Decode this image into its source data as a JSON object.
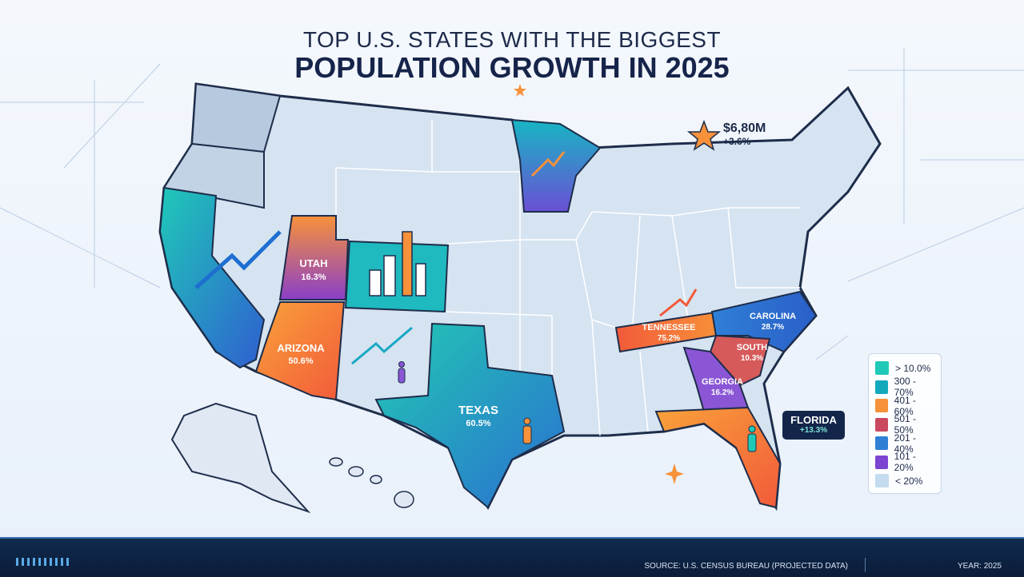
{
  "title": {
    "line1": "TOP U.S. STATES WITH THE BIGGEST",
    "line2": "POPULATION GROWTH IN 2025"
  },
  "states": [
    {
      "name": "UTAH",
      "value": "16.3%"
    },
    {
      "name": "ARIZONA",
      "value": "50.6%"
    },
    {
      "name": "TEXAS",
      "value": "60.5%"
    },
    {
      "name": "TENNESSEE",
      "value": "75.2%"
    },
    {
      "name": "CAROLINA",
      "value": "28.7%"
    },
    {
      "name": "SOUTH",
      "value": "10.3%"
    },
    {
      "name": "GEORGIA",
      "value": "16.2%"
    }
  ],
  "florida_callout": {
    "name": "FLORIDA",
    "value": "+13.3%"
  },
  "stat_callout": {
    "amount": "$6,80M",
    "change": "+3.6%"
  },
  "legend": [
    {
      "label": "> 10.0%",
      "color": "#1fc9b8"
    },
    {
      "label": "300 - 70%",
      "color": "#14a9bd"
    },
    {
      "label": "401 - 60%",
      "color": "#f7913a"
    },
    {
      "label": "501 - 50%",
      "color": "#c9485e"
    },
    {
      "label": "201 - 40%",
      "color": "#2f7fd6"
    },
    {
      "label": "101 - 20%",
      "color": "#7b45d2"
    },
    {
      "label": "< 20%",
      "color": "#c5dcef"
    }
  ],
  "footer": {
    "source": "SOURCE: U.S. CENSUS BUREAU (PROJECTED DATA)",
    "year": "YEAR: 2025"
  },
  "colors": {
    "background": "#eef4fb",
    "base_state": "#d6e3f1",
    "footer": "#0f2a4e",
    "title": "#16244a"
  }
}
